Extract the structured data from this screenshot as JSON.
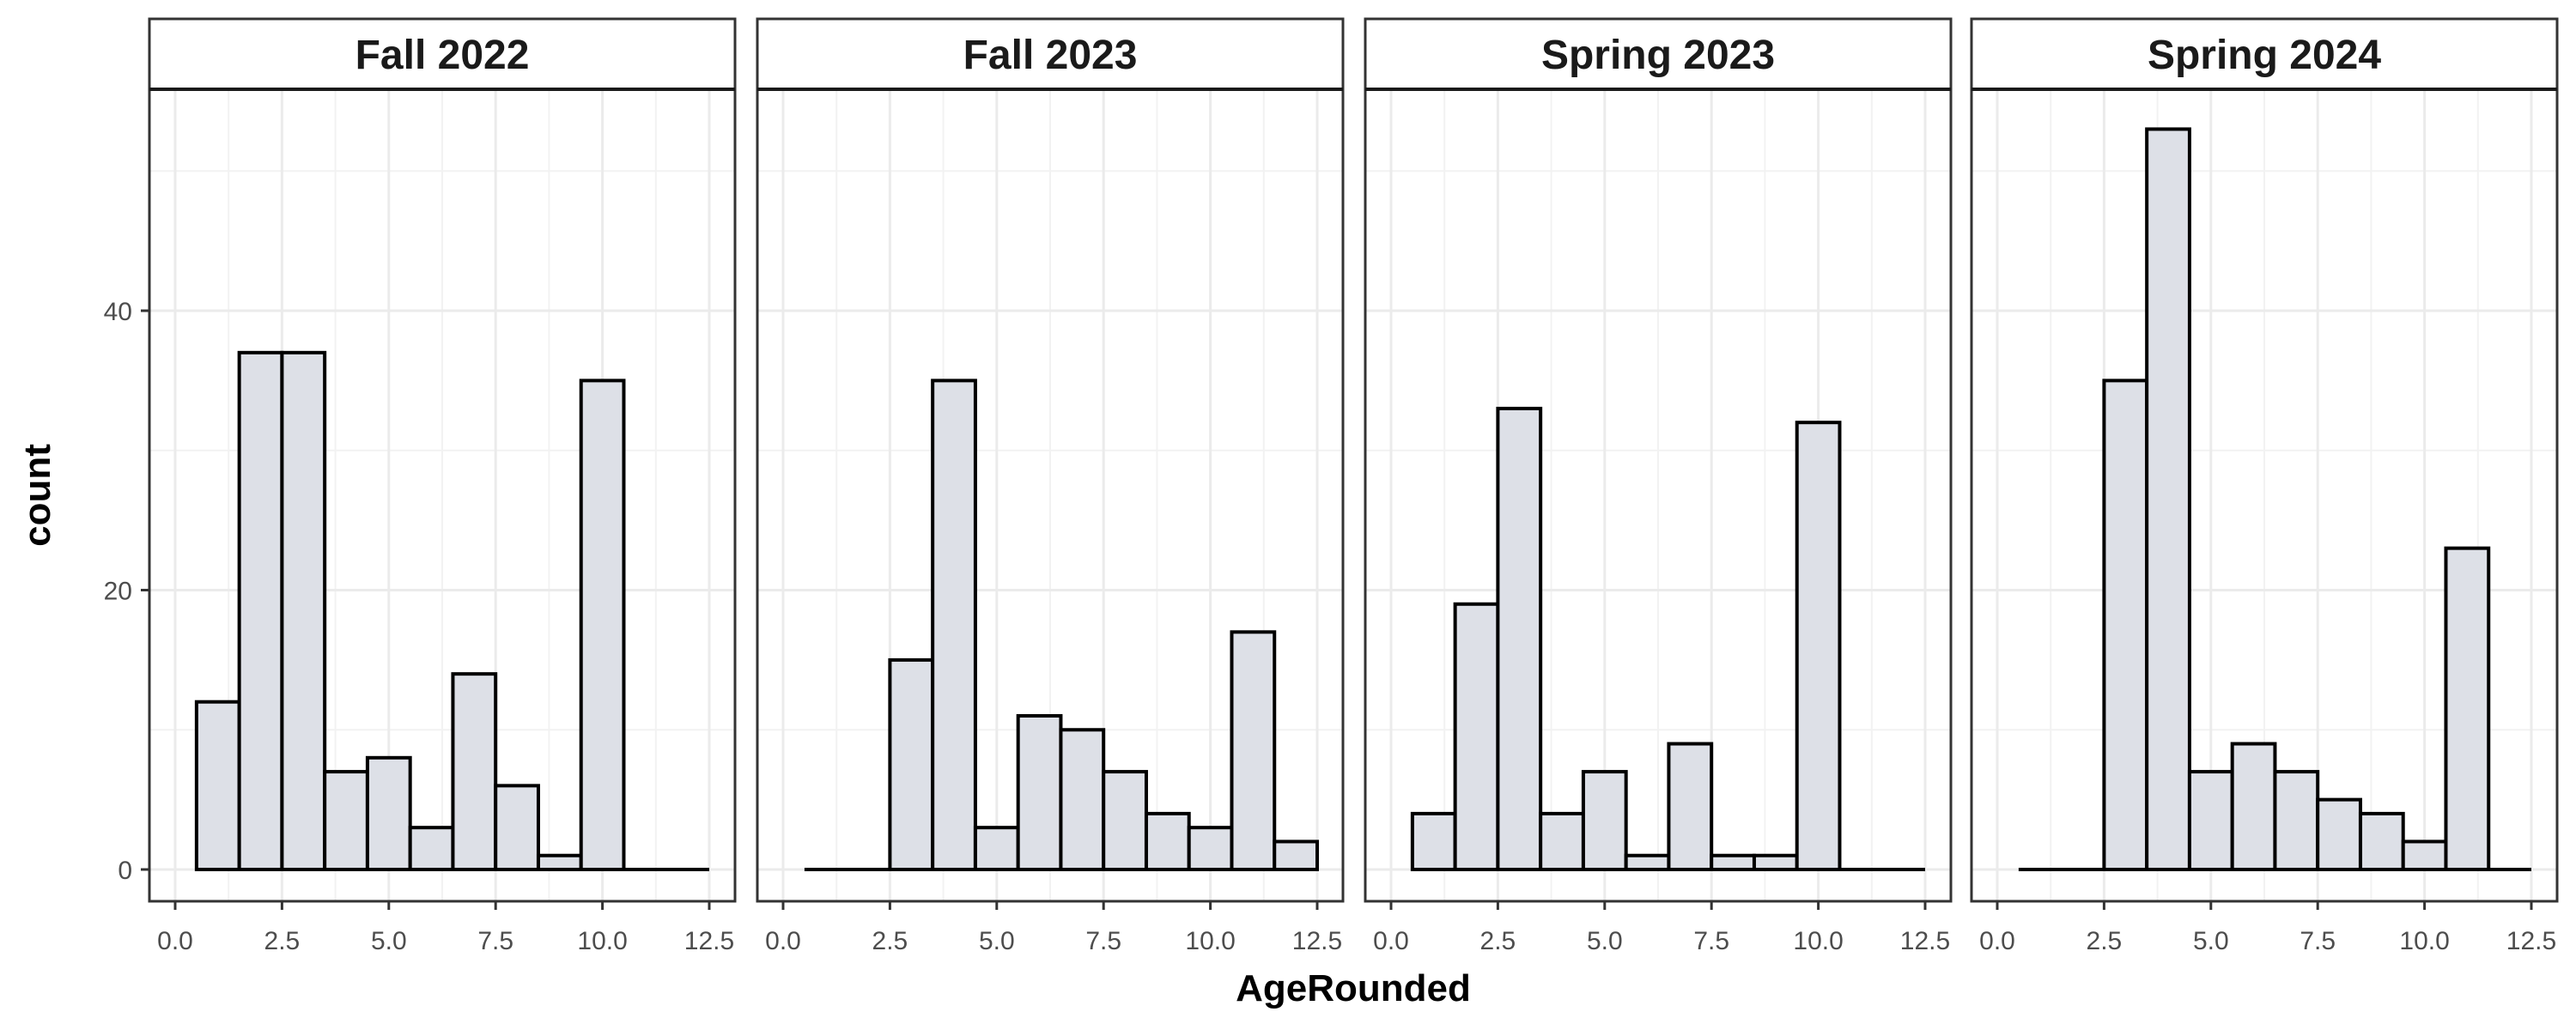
{
  "chart_data": {
    "type": "bar",
    "subtype": "faceted-histogram",
    "xlabel": "AgeRounded",
    "ylabel": "count",
    "xlim": [
      0,
      12.5
    ],
    "ylim": [
      0,
      55
    ],
    "x_ticks": [
      0,
      2.5,
      5,
      7.5,
      10,
      12.5
    ],
    "x_tick_labels": [
      "0.0",
      "2.5",
      "5.0",
      "7.5",
      "10.0",
      "12.5"
    ],
    "y_ticks": [
      0,
      20,
      40
    ],
    "y_tick_labels": [
      "0",
      "20",
      "40"
    ],
    "bin_centers": [
      1,
      2,
      3,
      4,
      5,
      6,
      7,
      8,
      9,
      10,
      11,
      12
    ],
    "bin_width": 1,
    "grid": true,
    "bar_fill": "#dde0e7",
    "bar_stroke": "#000000",
    "facets": [
      {
        "title": "Fall 2022",
        "values": [
          12,
          37,
          37,
          7,
          8,
          3,
          14,
          6,
          1,
          35,
          0,
          0
        ]
      },
      {
        "title": "Fall 2023",
        "values": [
          0,
          0,
          15,
          35,
          3,
          11,
          10,
          7,
          4,
          3,
          17,
          2
        ]
      },
      {
        "title": "Spring 2023",
        "values": [
          4,
          19,
          33,
          4,
          7,
          1,
          9,
          1,
          1,
          32,
          0,
          0
        ]
      },
      {
        "title": "Spring 2024",
        "values": [
          0,
          0,
          35,
          53,
          7,
          9,
          7,
          5,
          4,
          2,
          23,
          0
        ]
      }
    ]
  }
}
